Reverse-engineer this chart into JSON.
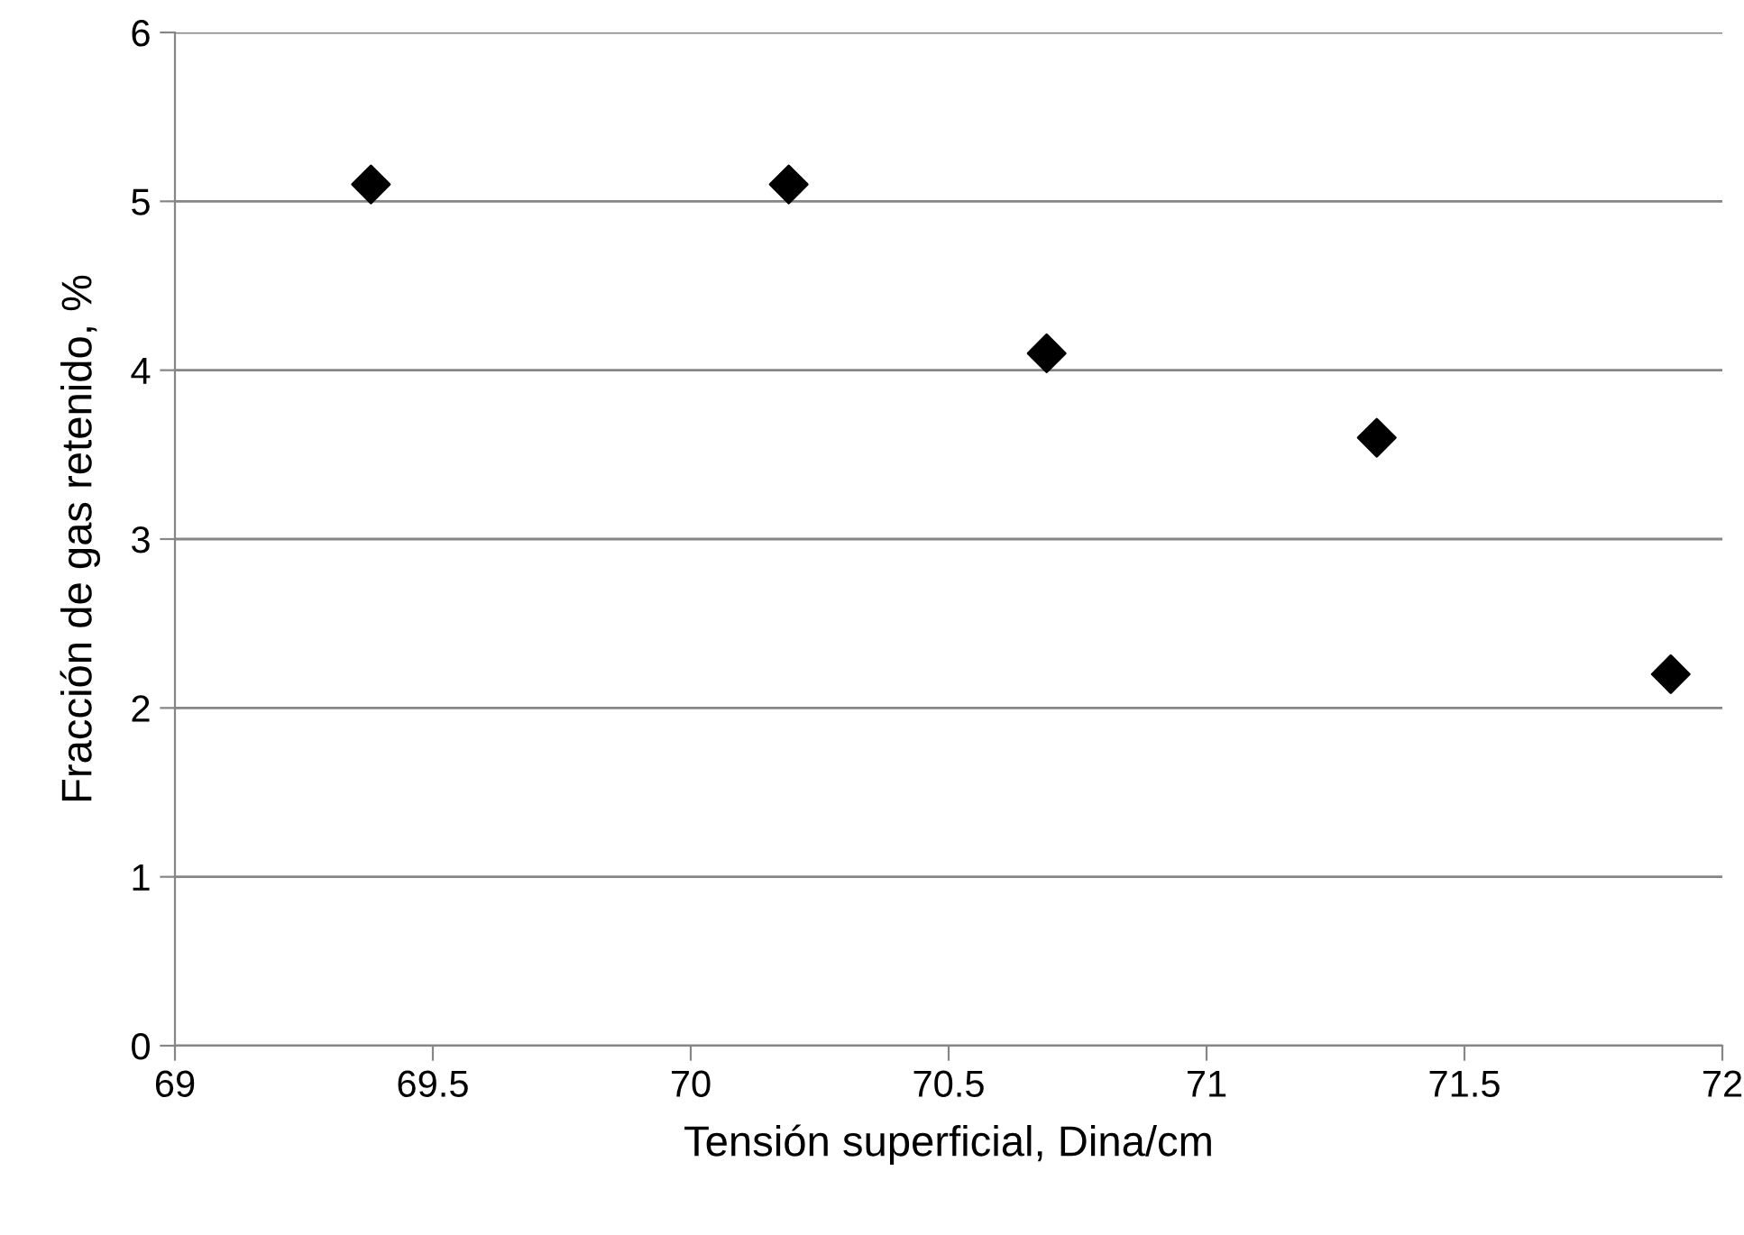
{
  "chart_data": {
    "type": "scatter",
    "xlabel": "Tensión superficial, Dina/cm",
    "ylabel": "Fracción de gas retenido, %",
    "x": [
      69.38,
      70.19,
      70.69,
      71.33,
      71.9
    ],
    "series": [
      {
        "color": "#000000",
        "values": [
          5.1,
          5.1,
          4.1,
          3.6,
          2.2
        ]
      }
    ],
    "xlim": [
      69,
      72
    ],
    "xticks": [
      69,
      69.5,
      70,
      70.5,
      71,
      71.5,
      72
    ],
    "ylim": [
      0,
      6
    ],
    "yticks": [
      0,
      1,
      2,
      3,
      4,
      5,
      6
    ],
    "grid": "y",
    "marker": "diamond",
    "legend": false
  }
}
